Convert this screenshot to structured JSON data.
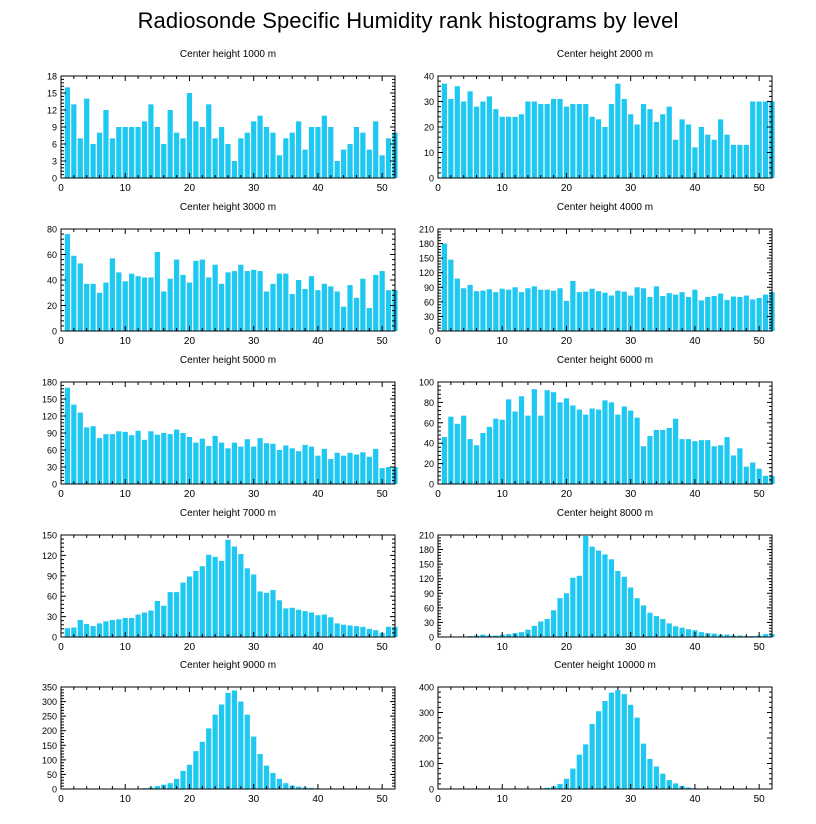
{
  "title": "Radiosonde Specific Humidity rank histograms by level",
  "colors": {
    "bar": "#1ec8f0",
    "axis": "#000000",
    "background": "#ffffff"
  },
  "chart_data": [
    {
      "type": "bar",
      "title": "Center height 1000 m",
      "xlim": [
        0,
        52
      ],
      "ylim": [
        0,
        18
      ],
      "xticks": [
        0,
        10,
        20,
        30,
        40,
        50
      ],
      "yticks": [
        0,
        3,
        6,
        9,
        12,
        15,
        18
      ],
      "values": [
        16,
        13,
        7,
        14,
        6,
        8,
        12,
        7,
        9,
        9,
        9,
        9,
        10,
        13,
        9,
        6,
        12,
        8,
        7,
        15,
        10,
        9,
        13,
        7,
        9,
        6,
        3,
        7,
        8,
        10,
        11,
        9,
        8,
        4,
        7,
        8,
        10,
        5,
        9,
        9,
        11,
        9,
        3,
        5,
        6,
        9,
        8,
        5,
        10,
        4,
        7,
        8
      ]
    },
    {
      "type": "bar",
      "title": "Center height 2000 m",
      "xlim": [
        0,
        52
      ],
      "ylim": [
        0,
        40
      ],
      "xticks": [
        0,
        10,
        20,
        30,
        40,
        50
      ],
      "yticks": [
        0,
        10,
        20,
        30,
        40
      ],
      "values": [
        37,
        31,
        36,
        30,
        34,
        28,
        30,
        32,
        27,
        24,
        24,
        24,
        25,
        30,
        30,
        29,
        29,
        31,
        31,
        28,
        29,
        29,
        29,
        24,
        23,
        20,
        29,
        37,
        31,
        25,
        21,
        29,
        27,
        22,
        25,
        28,
        15,
        23,
        21,
        12,
        20,
        17,
        15,
        23,
        17,
        13,
        13,
        13,
        30,
        30,
        30,
        30
      ]
    },
    {
      "type": "bar",
      "title": "Center height 3000 m",
      "xlim": [
        0,
        52
      ],
      "ylim": [
        0,
        80
      ],
      "xticks": [
        0,
        10,
        20,
        30,
        40,
        50
      ],
      "yticks": [
        0,
        20,
        40,
        60,
        80
      ],
      "values": [
        76,
        59,
        53,
        37,
        37,
        30,
        38,
        57,
        46,
        39,
        45,
        43,
        42,
        42,
        62,
        31,
        41,
        56,
        44,
        38,
        55,
        56,
        42,
        52,
        37,
        46,
        47,
        52,
        47,
        48,
        47,
        31,
        37,
        45,
        45,
        29,
        40,
        33,
        43,
        32,
        37,
        35,
        31,
        19,
        36,
        26,
        41,
        18,
        44,
        47,
        32,
        32
      ]
    },
    {
      "type": "bar",
      "title": "Center height 4000 m",
      "xlim": [
        0,
        52
      ],
      "ylim": [
        0,
        210
      ],
      "xticks": [
        0,
        10,
        20,
        30,
        40,
        50
      ],
      "yticks": [
        0,
        30,
        60,
        90,
        120,
        150,
        180,
        210
      ],
      "values": [
        180,
        147,
        108,
        88,
        95,
        82,
        83,
        86,
        80,
        87,
        85,
        90,
        80,
        88,
        92,
        85,
        85,
        83,
        88,
        62,
        103,
        80,
        81,
        87,
        82,
        79,
        73,
        83,
        81,
        73,
        90,
        88,
        70,
        92,
        72,
        78,
        75,
        80,
        70,
        85,
        63,
        70,
        72,
        77,
        64,
        71,
        70,
        73,
        65,
        68,
        75,
        80
      ]
    },
    {
      "type": "bar",
      "title": "Center height 5000 m",
      "xlim": [
        0,
        52
      ],
      "ylim": [
        0,
        180
      ],
      "xticks": [
        0,
        10,
        20,
        30,
        40,
        50
      ],
      "yticks": [
        0,
        30,
        60,
        90,
        120,
        150,
        180
      ],
      "values": [
        170,
        140,
        126,
        100,
        102,
        81,
        88,
        88,
        93,
        92,
        86,
        94,
        78,
        93,
        87,
        90,
        88,
        96,
        90,
        83,
        73,
        80,
        67,
        85,
        73,
        63,
        73,
        66,
        79,
        66,
        81,
        72,
        71,
        60,
        68,
        63,
        58,
        69,
        66,
        50,
        62,
        44,
        55,
        50,
        55,
        52,
        56,
        48,
        62,
        28,
        30,
        30
      ]
    },
    {
      "type": "bar",
      "title": "Center height 6000 m",
      "xlim": [
        0,
        52
      ],
      "ylim": [
        0,
        100
      ],
      "xticks": [
        0,
        10,
        20,
        30,
        40,
        50
      ],
      "yticks": [
        0,
        20,
        40,
        60,
        80,
        100
      ],
      "values": [
        46,
        66,
        59,
        67,
        44,
        38,
        50,
        56,
        64,
        63,
        83,
        71,
        86,
        67,
        93,
        67,
        92,
        90,
        80,
        84,
        77,
        73,
        68,
        74,
        73,
        82,
        80,
        68,
        76,
        72,
        65,
        37,
        47,
        53,
        53,
        55,
        64,
        44,
        44,
        42,
        43,
        43,
        37,
        38,
        46,
        28,
        35,
        17,
        21,
        15,
        8,
        8
      ]
    },
    {
      "type": "bar",
      "title": "Center height 7000 m",
      "xlim": [
        0,
        52
      ],
      "ylim": [
        0,
        150
      ],
      "xticks": [
        0,
        10,
        20,
        30,
        40,
        50
      ],
      "yticks": [
        0,
        30,
        60,
        90,
        120,
        150
      ],
      "values": [
        13,
        14,
        25,
        19,
        16,
        20,
        23,
        25,
        26,
        28,
        28,
        33,
        36,
        39,
        53,
        46,
        66,
        66,
        80,
        89,
        97,
        104,
        121,
        118,
        112,
        143,
        133,
        122,
        101,
        92,
        67,
        65,
        69,
        54,
        42,
        43,
        40,
        38,
        36,
        32,
        33,
        29,
        20,
        18,
        17,
        16,
        15,
        12,
        10,
        6,
        15,
        15
      ]
    },
    {
      "type": "bar",
      "title": "Center height 8000 m",
      "xlim": [
        0,
        52
      ],
      "ylim": [
        0,
        210
      ],
      "xticks": [
        0,
        10,
        20,
        30,
        40,
        50
      ],
      "yticks": [
        0,
        30,
        60,
        90,
        120,
        150,
        180,
        210
      ],
      "values": [
        0,
        0,
        0,
        1,
        2,
        3,
        5,
        3,
        3,
        5,
        6,
        8,
        10,
        15,
        23,
        32,
        37,
        55,
        80,
        90,
        122,
        126,
        208,
        186,
        178,
        170,
        160,
        136,
        124,
        102,
        80,
        65,
        50,
        43,
        37,
        28,
        22,
        19,
        16,
        14,
        10,
        8,
        7,
        5,
        5,
        3,
        3,
        2,
        2,
        3,
        6,
        6
      ]
    },
    {
      "type": "bar",
      "title": "Center height 9000 m",
      "xlim": [
        0,
        52
      ],
      "ylim": [
        0,
        350
      ],
      "xticks": [
        0,
        10,
        20,
        30,
        40,
        50
      ],
      "yticks": [
        0,
        50,
        100,
        150,
        200,
        250,
        300,
        350
      ],
      "values": [
        0,
        0,
        0,
        0,
        0,
        0,
        0,
        0,
        0,
        0,
        0,
        1,
        3,
        5,
        10,
        15,
        20,
        35,
        62,
        83,
        130,
        162,
        208,
        255,
        290,
        330,
        338,
        300,
        255,
        180,
        120,
        80,
        55,
        35,
        20,
        12,
        8,
        5,
        4,
        2,
        1,
        1,
        0,
        0,
        0,
        0,
        0,
        0,
        0,
        0,
        0,
        0
      ]
    },
    {
      "type": "bar",
      "title": "Center height 10000 m",
      "xlim": [
        0,
        52
      ],
      "ylim": [
        0,
        400
      ],
      "xticks": [
        0,
        10,
        20,
        30,
        40,
        50
      ],
      "yticks": [
        0,
        100,
        200,
        300,
        400
      ],
      "values": [
        0,
        0,
        0,
        0,
        0,
        0,
        0,
        0,
        0,
        0,
        0,
        0,
        0,
        0,
        1,
        2,
        5,
        10,
        20,
        40,
        80,
        135,
        175,
        255,
        305,
        345,
        378,
        388,
        372,
        330,
        280,
        178,
        118,
        88,
        60,
        35,
        22,
        12,
        6,
        3,
        2,
        1,
        1,
        0,
        0,
        0,
        0,
        0,
        0,
        0,
        0,
        0
      ]
    }
  ]
}
